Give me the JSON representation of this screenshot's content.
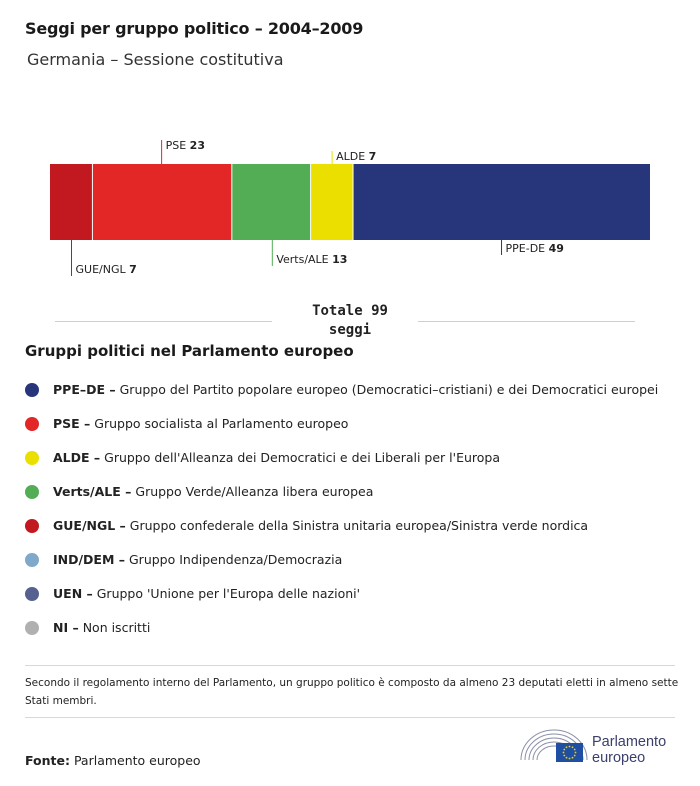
{
  "title": "Seggi per gruppo politico – 2004–2009",
  "subtitle": "Germania – Sessione costitutiva",
  "chart_data": {
    "type": "bar",
    "orientation": "horizontal-stacked",
    "total": 99,
    "segments": [
      {
        "group": "GUE/NGL",
        "value": 7,
        "color": "#c1191f",
        "label_position": "below"
      },
      {
        "group": "PSE",
        "value": 23,
        "color": "#e32727",
        "label_position": "above"
      },
      {
        "group": "Verts/ALE",
        "value": 13,
        "color": "#52ad55",
        "label_position": "below"
      },
      {
        "group": "ALDE",
        "value": 7,
        "color": "#ebdf00",
        "label_position": "above"
      },
      {
        "group": "PPE-DE",
        "value": 49,
        "color": "#27357b",
        "label_position": "below"
      }
    ]
  },
  "total": {
    "line1": "Totale 99",
    "line2": "seggi"
  },
  "legend": {
    "title": "Gruppi politici nel Parlamento europeo",
    "items": [
      {
        "abbr": "PPE–DE –",
        "desc": " Gruppo del Partito popolare europeo (Democratici–cristiani) e dei Democratici europei",
        "color": "#27357b"
      },
      {
        "abbr": "PSE –",
        "desc": " Gruppo socialista al Parlamento europeo",
        "color": "#e32727"
      },
      {
        "abbr": "ALDE –",
        "desc": " Gruppo dell'Alleanza dei Democratici e dei Liberali per l'Europa",
        "color": "#ebdf00"
      },
      {
        "abbr": "Verts/ALE –",
        "desc": " Gruppo Verde/Alleanza libera europea",
        "color": "#52ad55"
      },
      {
        "abbr": "GUE/NGL –",
        "desc": " Gruppo confederale della Sinistra unitaria europea/Sinistra verde nordica",
        "color": "#c1191f"
      },
      {
        "abbr": "IND/DEM –",
        "desc": " Gruppo Indipendenza/Democrazia",
        "color": "#7fa9c9"
      },
      {
        "abbr": "UEN –",
        "desc": " Gruppo 'Unione per l'Europa delle nazioni'",
        "color": "#56618f"
      },
      {
        "abbr": "NI –",
        "desc": " Non iscritti",
        "color": "#b0b0b0"
      }
    ]
  },
  "note": "Secondo il regolamento interno del Parlamento, un gruppo politico è composto da almeno 23 deputati eletti in almeno sette Stati membri.",
  "source": {
    "label": "Fonte:",
    "value": " Parlamento europeo"
  },
  "logo": {
    "line1": "Parlamento",
    "line2": "europeo",
    "icon": "european-parliament-hemicycle-icon",
    "flag_color": "#1f4fa3"
  }
}
